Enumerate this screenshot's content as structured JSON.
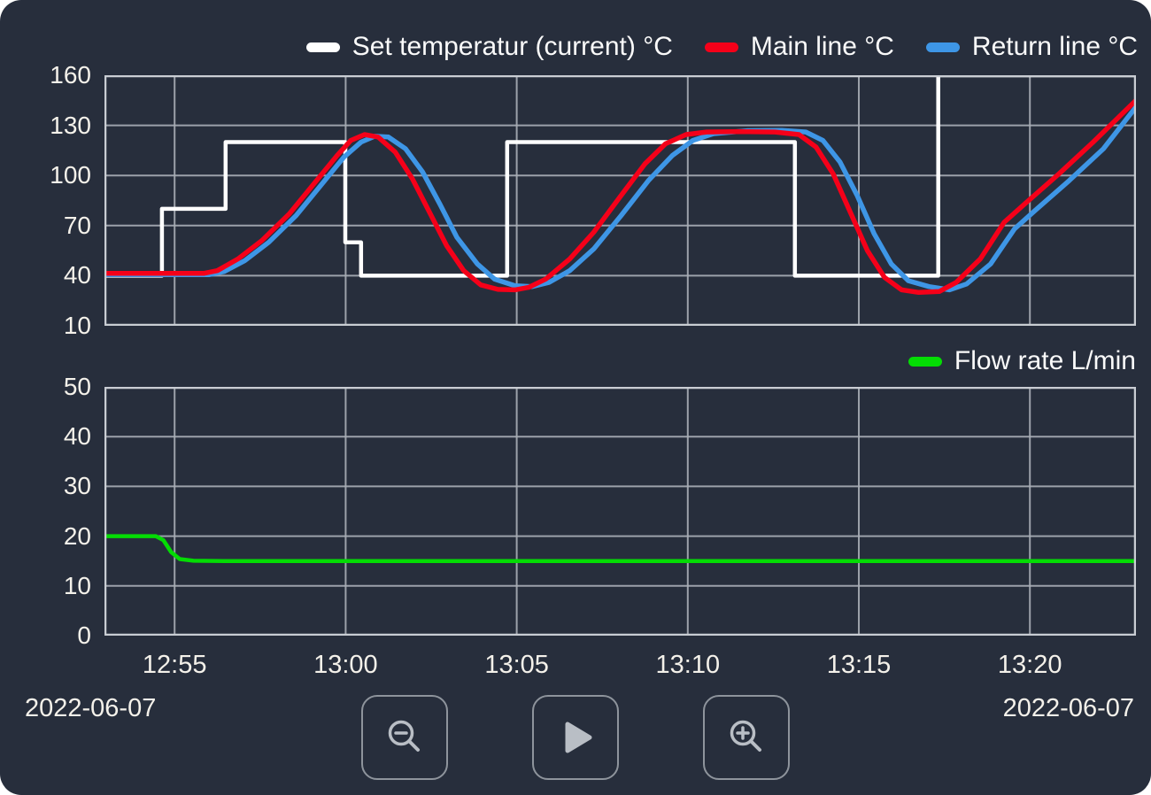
{
  "panel": {
    "background": "#272e3c",
    "grid_color": "#a9aeb6",
    "border_color": "#c9cdd3",
    "text_color": "#f4f1ea"
  },
  "x_axis": {
    "tick_labels": [
      "12:55",
      "13:00",
      "13:05",
      "13:10",
      "13:15",
      "13:20"
    ],
    "gridline_minutes": [
      2.05,
      7.05,
      12.05,
      17.05,
      22.05,
      27.05
    ],
    "range_minutes": [
      0,
      30.15
    ],
    "date_left": "2022-06-07",
    "date_right": "2022-06-07"
  },
  "chart_data": [
    {
      "type": "line",
      "id": "temperature",
      "ylim": [
        10,
        160
      ],
      "yticks": [
        10,
        40,
        70,
        100,
        130,
        160
      ],
      "grid": true,
      "legend_position": "top",
      "series": [
        {
          "name": "Set temperatur (current) °C",
          "color": "#ffffff",
          "width": 4.5,
          "points": [
            [
              0,
              40
            ],
            [
              1.68,
              40
            ],
            [
              1.68,
              80
            ],
            [
              3.54,
              80
            ],
            [
              3.54,
              120
            ],
            [
              7.04,
              120
            ],
            [
              7.04,
              60
            ],
            [
              7.5,
              60
            ],
            [
              7.5,
              40
            ],
            [
              11.77,
              40
            ],
            [
              11.77,
              120
            ],
            [
              20.18,
              120
            ],
            [
              20.18,
              40
            ],
            [
              24.37,
              40
            ],
            [
              24.37,
              160
            ],
            [
              30.15,
              160
            ]
          ]
        },
        {
          "name": "Main line °C",
          "color": "#f50019",
          "width": 5.5,
          "points": [
            [
              0,
              41.4
            ],
            [
              2.9,
              41.4
            ],
            [
              3.3,
              43
            ],
            [
              3.9,
              50
            ],
            [
              4.6,
              61
            ],
            [
              5.4,
              77
            ],
            [
              6.2,
              97
            ],
            [
              6.8,
              112
            ],
            [
              7.2,
              121
            ],
            [
              7.6,
              124.5
            ],
            [
              8.0,
              123
            ],
            [
              8.5,
              114
            ],
            [
              9.0,
              98
            ],
            [
              9.5,
              78
            ],
            [
              10.0,
              58
            ],
            [
              10.5,
              43
            ],
            [
              11.0,
              34.5
            ],
            [
              11.5,
              31.8
            ],
            [
              12.0,
              31.5
            ],
            [
              12.4,
              33
            ],
            [
              12.9,
              38
            ],
            [
              13.6,
              50
            ],
            [
              14.3,
              66
            ],
            [
              15.1,
              88
            ],
            [
              15.8,
              107
            ],
            [
              16.4,
              119
            ],
            [
              17.0,
              124.5
            ],
            [
              17.6,
              126
            ],
            [
              18.6,
              126.3
            ],
            [
              19.6,
              126
            ],
            [
              20.3,
              124.5
            ],
            [
              20.8,
              117
            ],
            [
              21.3,
              101
            ],
            [
              21.8,
              78
            ],
            [
              22.3,
              55
            ],
            [
              22.8,
              39
            ],
            [
              23.3,
              31.5
            ],
            [
              23.8,
              30
            ],
            [
              24.4,
              30.5
            ],
            [
              24.9,
              36
            ],
            [
              25.6,
              50
            ],
            [
              26.3,
              72
            ],
            [
              26.9,
              83
            ],
            [
              27.9,
              101
            ],
            [
              28.9,
              120
            ],
            [
              30.15,
              145
            ]
          ]
        },
        {
          "name": "Return line °C",
          "color": "#3e96e6",
          "width": 5.5,
          "points": [
            [
              0,
              40.6
            ],
            [
              3.05,
              40.6
            ],
            [
              3.5,
              42.5
            ],
            [
              4.1,
              49
            ],
            [
              4.8,
              60
            ],
            [
              5.6,
              76
            ],
            [
              6.4,
              96
            ],
            [
              7.0,
              111
            ],
            [
              7.5,
              120
            ],
            [
              7.9,
              123.5
            ],
            [
              8.3,
              123
            ],
            [
              8.8,
              116
            ],
            [
              9.3,
              102
            ],
            [
              9.8,
              83
            ],
            [
              10.3,
              63
            ],
            [
              10.9,
              47
            ],
            [
              11.4,
              38
            ],
            [
              12.0,
              34
            ],
            [
              12.5,
              33.5
            ],
            [
              13.0,
              36
            ],
            [
              13.6,
              43
            ],
            [
              14.3,
              56
            ],
            [
              15.1,
              76
            ],
            [
              15.9,
              97
            ],
            [
              16.6,
              112
            ],
            [
              17.2,
              121
            ],
            [
              17.8,
              125
            ],
            [
              18.8,
              126.8
            ],
            [
              19.8,
              127
            ],
            [
              20.5,
              126
            ],
            [
              21.0,
              121
            ],
            [
              21.5,
              108
            ],
            [
              22.0,
              88
            ],
            [
              22.5,
              65
            ],
            [
              23.0,
              47
            ],
            [
              23.5,
              37
            ],
            [
              24.1,
              33.5
            ],
            [
              24.7,
              31.5
            ],
            [
              25.2,
              35
            ],
            [
              25.9,
              47
            ],
            [
              26.6,
              68
            ],
            [
              27.2,
              79
            ],
            [
              28.2,
              97
            ],
            [
              29.2,
              116
            ],
            [
              30.15,
              141
            ]
          ]
        }
      ]
    },
    {
      "type": "line",
      "id": "flow",
      "ylim": [
        0,
        50
      ],
      "yticks": [
        0,
        10,
        20,
        30,
        40,
        50
      ],
      "grid": true,
      "legend_position": "top-right",
      "series": [
        {
          "name": "Flow rate L/min",
          "color": "#04dc04",
          "width": 4.5,
          "points": [
            [
              0,
              20
            ],
            [
              1.5,
              20
            ],
            [
              1.72,
              19.2
            ],
            [
              1.95,
              16.8
            ],
            [
              2.2,
              15.4
            ],
            [
              2.6,
              15.05
            ],
            [
              3.5,
              15
            ],
            [
              30.15,
              15
            ]
          ]
        }
      ]
    }
  ],
  "toolbar": {
    "buttons": [
      {
        "name": "zoom-out",
        "icon": "magnifier-minus-icon"
      },
      {
        "name": "play",
        "icon": "play-icon"
      },
      {
        "name": "zoom-in",
        "icon": "magnifier-plus-icon"
      }
    ]
  }
}
